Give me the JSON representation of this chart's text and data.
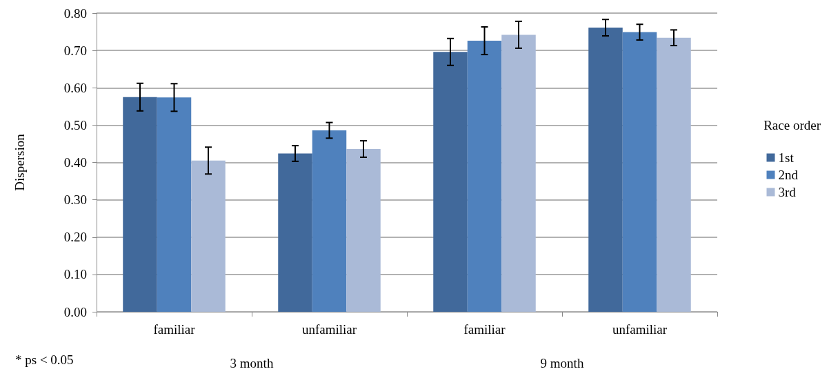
{
  "chart_data": {
    "type": "bar",
    "ylabel": "Dispersion",
    "legend_title": "Race order",
    "categories": [
      "familiar",
      "unfamiliar",
      "familiar",
      "unfamiliar"
    ],
    "series": [
      {
        "name": "1st",
        "color": "#41699b",
        "values": [
          0.575,
          0.424,
          0.696,
          0.761
        ],
        "errors": [
          0.037,
          0.021,
          0.036,
          0.022
        ]
      },
      {
        "name": "2nd",
        "color": "#4f81bd",
        "values": [
          0.574,
          0.486,
          0.726,
          0.749
        ],
        "errors": [
          0.037,
          0.021,
          0.037,
          0.021
        ]
      },
      {
        "name": "3rd",
        "color": "#aabad7",
        "values": [
          0.405,
          0.436,
          0.742,
          0.734
        ],
        "errors": [
          0.036,
          0.022,
          0.036,
          0.021
        ]
      }
    ],
    "ylim": [
      0,
      0.8
    ],
    "yticks": [
      {
        "value": 0,
        "label": "0.00"
      },
      {
        "value": 0.1,
        "label": "0.10"
      },
      {
        "value": 0.2,
        "label": "0.20"
      },
      {
        "value": 0.3,
        "label": "0.30"
      },
      {
        "value": 0.4,
        "label": "0.40"
      },
      {
        "value": 0.5,
        "label": "0.50"
      },
      {
        "value": 0.6,
        "label": "0.60"
      },
      {
        "value": 0.7,
        "label": "0.70"
      },
      {
        "value": 0.8,
        "label": "0.80"
      }
    ],
    "grid": "y",
    "legend": "right",
    "annotations": [
      "* ps < 0.05",
      "3 month",
      "9 month"
    ]
  }
}
